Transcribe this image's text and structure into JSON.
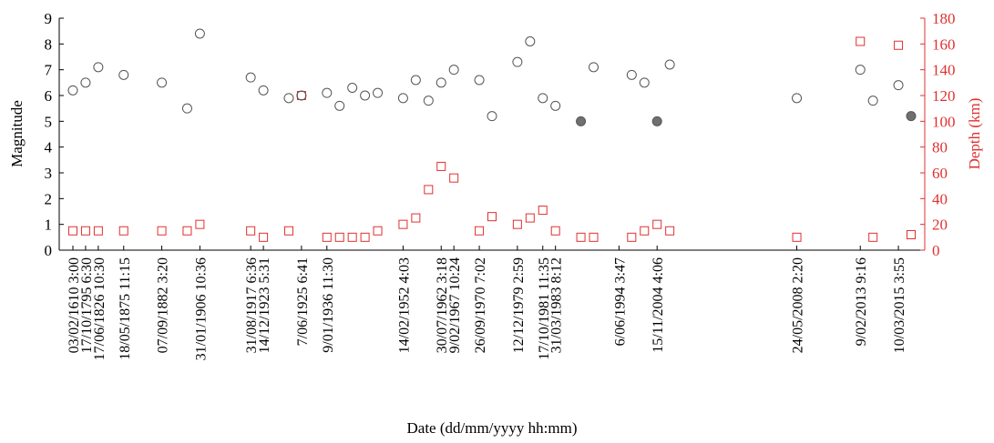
{
  "chart_data": {
    "type": "scatter",
    "title": "",
    "xlabel": "Date (dd/mm/yyyy  hh:mm)",
    "ylabel_left": "Magnitude",
    "ylabel_right": "Depth (km)",
    "ylim_left": [
      0,
      9
    ],
    "ylim_right": [
      0,
      180
    ],
    "yticks_left": [
      "0",
      "1",
      "2",
      "3",
      "4",
      "5",
      "6",
      "7",
      "8",
      "9"
    ],
    "yticks_right": [
      "0",
      "20",
      "40",
      "60",
      "80",
      "100",
      "120",
      "140",
      "160",
      "180"
    ],
    "colors": {
      "magnitude": "#555555",
      "depth": "#e03030",
      "filled": "#707070"
    },
    "grid": false,
    "legend": "none",
    "xticks": [
      {
        "label": "03/02/1610 3:00",
        "i": 0
      },
      {
        "label": "17/10/1795 6:30",
        "i": 1
      },
      {
        "label": "17/06/1826 10:30",
        "i": 2
      },
      {
        "label": "18/05/1875 11:15",
        "i": 4
      },
      {
        "label": "07/09/1882 3:20",
        "i": 7
      },
      {
        "label": "31/01/1906 10:36",
        "i": 10
      },
      {
        "label": "31/08/1917 6:36",
        "i": 14
      },
      {
        "label": "14/12/1923 5:31",
        "i": 15
      },
      {
        "label": "7/06/1925 6:41",
        "i": 18
      },
      {
        "label": "9/01/1936 11:30",
        "i": 20
      },
      {
        "label": "14/02/1952 4:03",
        "i": 26
      },
      {
        "label": "30/07/1962 3:18",
        "i": 29
      },
      {
        "label": "9/02/1967 10:24",
        "i": 30
      },
      {
        "label": "26/09/1970 7:02",
        "i": 32
      },
      {
        "label": "12/12/1979 2:59",
        "i": 35
      },
      {
        "label": "17/10/1981 11:35",
        "i": 37
      },
      {
        "label": "31/03/1983 8:12",
        "i": 38
      },
      {
        "label": "6/06/1994 3:47",
        "i": 43
      },
      {
        "label": "15/11/2004 4:06",
        "i": 46
      },
      {
        "label": "24/05/2008 2:20",
        "i": 57
      },
      {
        "label": "9/02/2013 9:16",
        "i": 62
      },
      {
        "label": "10/03/2015 3:55",
        "i": 65
      }
    ],
    "x_count": 67,
    "magnitude": [
      {
        "i": 0,
        "value": 6.2
      },
      {
        "i": 1,
        "value": 6.5
      },
      {
        "i": 2,
        "value": 7.1
      },
      {
        "i": 4,
        "value": 6.8
      },
      {
        "i": 7,
        "value": 6.5
      },
      {
        "i": 9,
        "value": 5.5
      },
      {
        "i": 10,
        "value": 8.4
      },
      {
        "i": 14,
        "value": 6.7
      },
      {
        "i": 15,
        "value": 6.2
      },
      {
        "i": 17,
        "value": 5.9
      },
      {
        "i": 18,
        "value": 6.0
      },
      {
        "i": 20,
        "value": 6.1
      },
      {
        "i": 21,
        "value": 5.6
      },
      {
        "i": 22,
        "value": 6.3
      },
      {
        "i": 23,
        "value": 6.0
      },
      {
        "i": 24,
        "value": 6.1
      },
      {
        "i": 26,
        "value": 5.9
      },
      {
        "i": 27,
        "value": 6.6
      },
      {
        "i": 28,
        "value": 5.8
      },
      {
        "i": 29,
        "value": 6.5
      },
      {
        "i": 30,
        "value": 7.0
      },
      {
        "i": 32,
        "value": 6.6
      },
      {
        "i": 33,
        "value": 5.2
      },
      {
        "i": 35,
        "value": 7.3
      },
      {
        "i": 36,
        "value": 8.1
      },
      {
        "i": 37,
        "value": 5.9
      },
      {
        "i": 38,
        "value": 5.6
      },
      {
        "i": 40,
        "value": 5.0,
        "filled": true
      },
      {
        "i": 41,
        "value": 7.1
      },
      {
        "i": 44,
        "value": 6.8
      },
      {
        "i": 45,
        "value": 6.5
      },
      {
        "i": 46,
        "value": 5.0,
        "filled": true
      },
      {
        "i": 47,
        "value": 7.2
      },
      {
        "i": 57,
        "value": 5.9
      },
      {
        "i": 62,
        "value": 7.0
      },
      {
        "i": 63,
        "value": 5.8
      },
      {
        "i": 65,
        "value": 6.4
      },
      {
        "i": 66,
        "value": 5.2,
        "filled": true
      }
    ],
    "depth": [
      {
        "i": 0,
        "value": 15
      },
      {
        "i": 1,
        "value": 15
      },
      {
        "i": 2,
        "value": 15
      },
      {
        "i": 4,
        "value": 15
      },
      {
        "i": 7,
        "value": 15
      },
      {
        "i": 9,
        "value": 15
      },
      {
        "i": 10,
        "value": 20
      },
      {
        "i": 14,
        "value": 15
      },
      {
        "i": 15,
        "value": 10
      },
      {
        "i": 17,
        "value": 15
      },
      {
        "i": 18,
        "value": 120
      },
      {
        "i": 20,
        "value": 10
      },
      {
        "i": 21,
        "value": 10
      },
      {
        "i": 22,
        "value": 10
      },
      {
        "i": 23,
        "value": 10
      },
      {
        "i": 24,
        "value": 15
      },
      {
        "i": 26,
        "value": 20
      },
      {
        "i": 27,
        "value": 25
      },
      {
        "i": 28,
        "value": 47
      },
      {
        "i": 29,
        "value": 65
      },
      {
        "i": 30,
        "value": 56
      },
      {
        "i": 32,
        "value": 15
      },
      {
        "i": 33,
        "value": 26
      },
      {
        "i": 35,
        "value": 20
      },
      {
        "i": 36,
        "value": 25
      },
      {
        "i": 37,
        "value": 31
      },
      {
        "i": 38,
        "value": 15
      },
      {
        "i": 40,
        "value": 10
      },
      {
        "i": 41,
        "value": 10
      },
      {
        "i": 44,
        "value": 10
      },
      {
        "i": 45,
        "value": 15
      },
      {
        "i": 46,
        "value": 20
      },
      {
        "i": 47,
        "value": 15
      },
      {
        "i": 57,
        "value": 10
      },
      {
        "i": 62,
        "value": 162
      },
      {
        "i": 63,
        "value": 10
      },
      {
        "i": 65,
        "value": 159
      },
      {
        "i": 66,
        "value": 12
      }
    ]
  }
}
